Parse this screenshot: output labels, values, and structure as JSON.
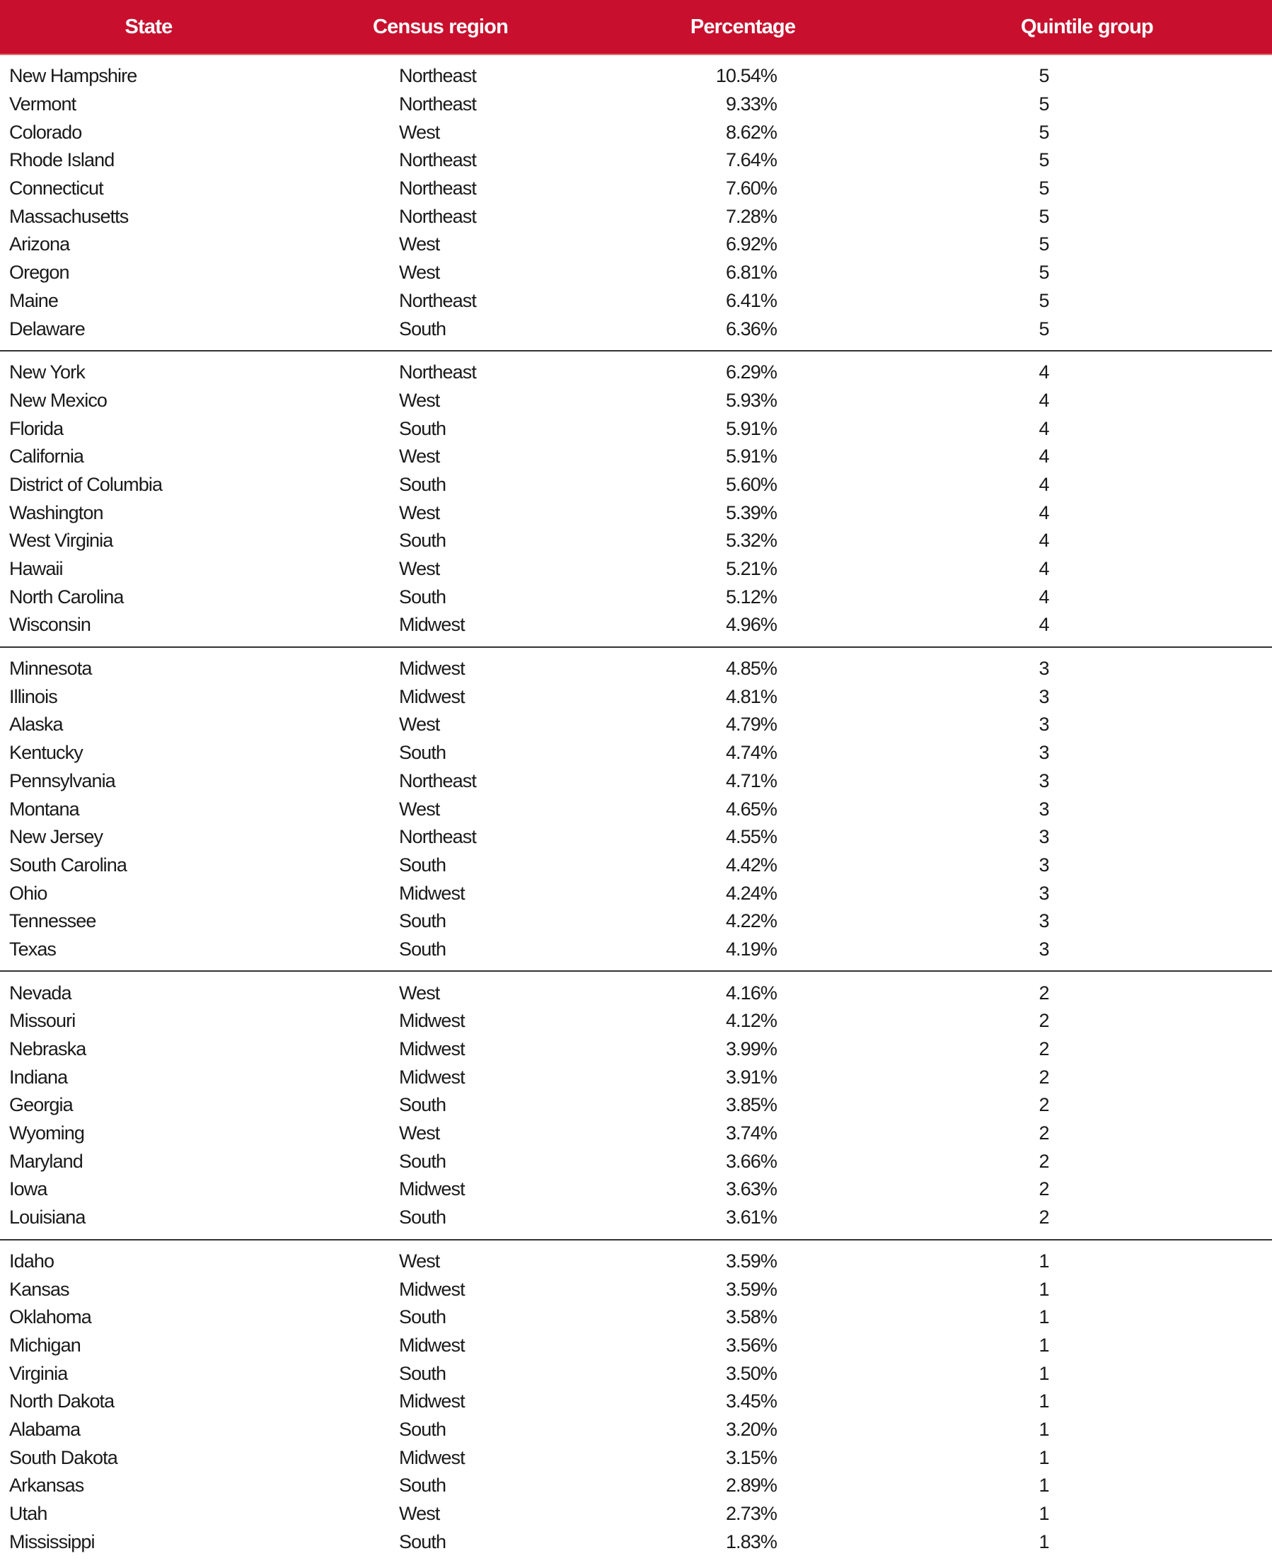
{
  "colors": {
    "header_bg": "#c8102e",
    "header_text": "#ffffff",
    "divider": "#333333"
  },
  "table": {
    "headers": [
      "State",
      "Census region",
      "Percentage",
      "Quintile group"
    ],
    "groups": [
      [
        [
          "New Hampshire",
          "Northeast",
          "10.54%",
          "5"
        ],
        [
          "Vermont",
          "Northeast",
          "9.33%",
          "5"
        ],
        [
          "Colorado",
          "West",
          "8.62%",
          "5"
        ],
        [
          "Rhode Island",
          "Northeast",
          "7.64%",
          "5"
        ],
        [
          "Connecticut",
          "Northeast",
          "7.60%",
          "5"
        ],
        [
          "Massachusetts",
          "Northeast",
          "7.28%",
          "5"
        ],
        [
          "Arizona",
          "West",
          "6.92%",
          "5"
        ],
        [
          "Oregon",
          "West",
          "6.81%",
          "5"
        ],
        [
          "Maine",
          "Northeast",
          "6.41%",
          "5"
        ],
        [
          "Delaware",
          "South",
          "6.36%",
          "5"
        ]
      ],
      [
        [
          "New York",
          "Northeast",
          "6.29%",
          "4"
        ],
        [
          "New Mexico",
          "West",
          "5.93%",
          "4"
        ],
        [
          "Florida",
          "South",
          "5.91%",
          "4"
        ],
        [
          "California",
          "West",
          "5.91%",
          "4"
        ],
        [
          "District of Columbia",
          "South",
          "5.60%",
          "4"
        ],
        [
          "Washington",
          "West",
          "5.39%",
          "4"
        ],
        [
          "West Virginia",
          "South",
          "5.32%",
          "4"
        ],
        [
          "Hawaii",
          "West",
          "5.21%",
          "4"
        ],
        [
          "North Carolina",
          "South",
          "5.12%",
          "4"
        ],
        [
          "Wisconsin",
          "Midwest",
          "4.96%",
          "4"
        ]
      ],
      [
        [
          "Minnesota",
          "Midwest",
          "4.85%",
          "3"
        ],
        [
          "Illinois",
          "Midwest",
          "4.81%",
          "3"
        ],
        [
          "Alaska",
          "West",
          "4.79%",
          "3"
        ],
        [
          "Kentucky",
          "South",
          "4.74%",
          "3"
        ],
        [
          "Pennsylvania",
          "Northeast",
          "4.71%",
          "3"
        ],
        [
          "Montana",
          "West",
          "4.65%",
          "3"
        ],
        [
          "New Jersey",
          "Northeast",
          "4.55%",
          "3"
        ],
        [
          "South Carolina",
          "South",
          "4.42%",
          "3"
        ],
        [
          "Ohio",
          "Midwest",
          "4.24%",
          "3"
        ],
        [
          "Tennessee",
          "South",
          "4.22%",
          "3"
        ],
        [
          "Texas",
          "South",
          "4.19%",
          "3"
        ]
      ],
      [
        [
          "Nevada",
          "West",
          "4.16%",
          "2"
        ],
        [
          "Missouri",
          "Midwest",
          "4.12%",
          "2"
        ],
        [
          "Nebraska",
          "Midwest",
          "3.99%",
          "2"
        ],
        [
          "Indiana",
          "Midwest",
          "3.91%",
          "2"
        ],
        [
          "Georgia",
          "South",
          "3.85%",
          "2"
        ],
        [
          "Wyoming",
          "West",
          "3.74%",
          "2"
        ],
        [
          "Maryland",
          "South",
          "3.66%",
          "2"
        ],
        [
          "Iowa",
          "Midwest",
          "3.63%",
          "2"
        ],
        [
          "Louisiana",
          "South",
          "3.61%",
          "2"
        ]
      ],
      [
        [
          "Idaho",
          "West",
          "3.59%",
          "1"
        ],
        [
          "Kansas",
          "Midwest",
          "3.59%",
          "1"
        ],
        [
          "Oklahoma",
          "South",
          "3.58%",
          "1"
        ],
        [
          "Michigan",
          "Midwest",
          "3.56%",
          "1"
        ],
        [
          "Virginia",
          "South",
          "3.50%",
          "1"
        ],
        [
          "North Dakota",
          "Midwest",
          "3.45%",
          "1"
        ],
        [
          "Alabama",
          "South",
          "3.20%",
          "1"
        ],
        [
          "South Dakota",
          "Midwest",
          "3.15%",
          "1"
        ],
        [
          "Arkansas",
          "South",
          "2.89%",
          "1"
        ],
        [
          "Utah",
          "West",
          "2.73%",
          "1"
        ],
        [
          "Mississippi",
          "South",
          "1.83%",
          "1"
        ]
      ]
    ]
  }
}
